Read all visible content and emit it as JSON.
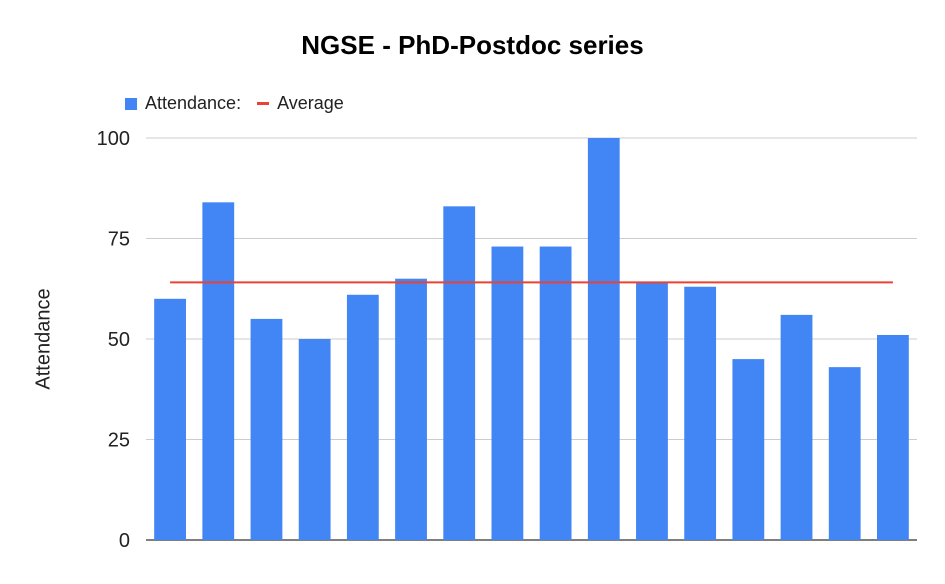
{
  "chart_data": {
    "type": "bar",
    "title": "NGSE - PhD-Postdoc series",
    "xlabel": "",
    "ylabel": "Attendance",
    "ylim": [
      0,
      100
    ],
    "yticks": [
      "0",
      "25",
      "50",
      "75",
      "100"
    ],
    "legend_position": "top-left",
    "grid": true,
    "categories": [
      "",
      "",
      "",
      "",
      "",
      "",
      "",
      "",
      "",
      "",
      "",
      "",
      "",
      "",
      "",
      ""
    ],
    "series": [
      {
        "name": "Attendance:",
        "type": "bar",
        "color": "#4285f4",
        "values": [
          60,
          84,
          55,
          50,
          61,
          65,
          83,
          73,
          73,
          100,
          64,
          63,
          45,
          56,
          43,
          51
        ]
      },
      {
        "name": "Average",
        "type": "line",
        "color": "#ea4335",
        "values": [
          64.1,
          64.1,
          64.1,
          64.1,
          64.1,
          64.1,
          64.1,
          64.1,
          64.1,
          64.1,
          64.1,
          64.1,
          64.1,
          64.1,
          64.1,
          64.1
        ]
      }
    ]
  }
}
